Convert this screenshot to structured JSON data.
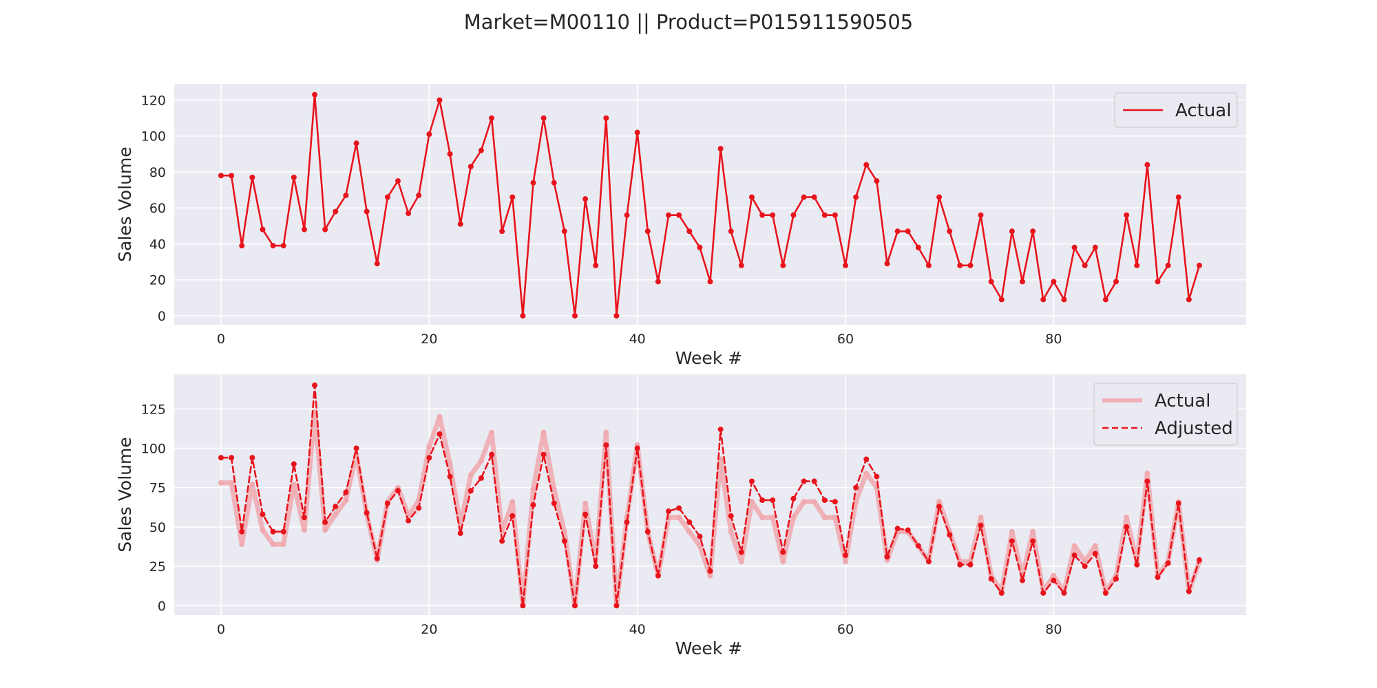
{
  "figure": {
    "title": "Market=M00110 || Product=P015911590505"
  },
  "colors": {
    "background": "#ffffff",
    "plot_background": "#eaeaf2",
    "grid": "#ffffff",
    "actual_line": "#e8141c",
    "actual_faint": "#f0a8ae",
    "adjusted_line": "#e8141c",
    "text": "#262626"
  },
  "chart_data": [
    {
      "type": "line",
      "xlabel": "Week #",
      "ylabel": "Sales Volume",
      "xlim": [
        -4.5,
        98.5
      ],
      "ylim": [
        -5,
        129
      ],
      "xticks": [
        0,
        20,
        40,
        60,
        80
      ],
      "yticks": [
        0,
        20,
        40,
        60,
        80,
        100,
        120
      ],
      "grid": true,
      "legend_position": "top-right",
      "legend": [
        "Actual"
      ],
      "series": [
        {
          "name": "Actual",
          "style": "solid",
          "markers": true,
          "x": [
            0,
            1,
            2,
            3,
            4,
            5,
            6,
            7,
            8,
            9,
            10,
            11,
            12,
            13,
            14,
            15,
            16,
            17,
            18,
            19,
            20,
            21,
            22,
            23,
            24,
            25,
            26,
            27,
            28,
            29,
            30,
            31,
            32,
            33,
            34,
            35,
            36,
            37,
            38,
            39,
            40,
            41,
            42,
            43,
            44,
            45,
            46,
            47,
            48,
            49,
            50,
            51,
            52,
            53,
            54,
            55,
            56,
            57,
            58,
            59,
            60,
            61,
            62,
            63,
            64,
            65,
            66,
            67,
            68,
            69,
            70,
            71,
            72,
            73,
            74,
            75,
            76,
            77,
            78,
            79,
            80,
            81,
            82,
            83,
            84,
            85,
            86,
            87,
            88,
            89,
            90,
            91,
            92,
            93,
            94
          ],
          "values": [
            78,
            78,
            39,
            77,
            48,
            39,
            39,
            77,
            48,
            123,
            48,
            58,
            67,
            96,
            58,
            29,
            66,
            75,
            57,
            67,
            101,
            120,
            90,
            51,
            83,
            92,
            110,
            47,
            66,
            0,
            74,
            110,
            74,
            47,
            0,
            65,
            28,
            110,
            0,
            56,
            102,
            47,
            19,
            56,
            56,
            47,
            38,
            19,
            93,
            47,
            28,
            66,
            56,
            56,
            28,
            56,
            66,
            66,
            56,
            56,
            28,
            66,
            84,
            75,
            29,
            47,
            47,
            38,
            28,
            66,
            47,
            28,
            28,
            56,
            19,
            9,
            47,
            19,
            47,
            9,
            19,
            9,
            38,
            28,
            38,
            9,
            19,
            56,
            28,
            84,
            19,
            28,
            66,
            9,
            28
          ]
        }
      ]
    },
    {
      "type": "line",
      "xlabel": "Week #",
      "ylabel": "Sales Volume",
      "xlim": [
        -4.5,
        98.5
      ],
      "ylim": [
        -6,
        147
      ],
      "xticks": [
        0,
        20,
        40,
        60,
        80
      ],
      "yticks": [
        0,
        25,
        50,
        75,
        100,
        125
      ],
      "grid": true,
      "legend_position": "top-right",
      "legend": [
        "Actual",
        "Adjusted"
      ],
      "series": [
        {
          "name": "Actual",
          "style": "faint-thick",
          "markers": true,
          "x": [
            0,
            1,
            2,
            3,
            4,
            5,
            6,
            7,
            8,
            9,
            10,
            11,
            12,
            13,
            14,
            15,
            16,
            17,
            18,
            19,
            20,
            21,
            22,
            23,
            24,
            25,
            26,
            27,
            28,
            29,
            30,
            31,
            32,
            33,
            34,
            35,
            36,
            37,
            38,
            39,
            40,
            41,
            42,
            43,
            44,
            45,
            46,
            47,
            48,
            49,
            50,
            51,
            52,
            53,
            54,
            55,
            56,
            57,
            58,
            59,
            60,
            61,
            62,
            63,
            64,
            65,
            66,
            67,
            68,
            69,
            70,
            71,
            72,
            73,
            74,
            75,
            76,
            77,
            78,
            79,
            80,
            81,
            82,
            83,
            84,
            85,
            86,
            87,
            88,
            89,
            90,
            91,
            92,
            93,
            94
          ],
          "values": [
            78,
            78,
            39,
            77,
            48,
            39,
            39,
            77,
            48,
            123,
            48,
            58,
            67,
            96,
            58,
            29,
            66,
            75,
            57,
            67,
            101,
            120,
            90,
            51,
            83,
            92,
            110,
            47,
            66,
            0,
            74,
            110,
            74,
            47,
            0,
            65,
            28,
            110,
            0,
            56,
            102,
            47,
            19,
            56,
            56,
            47,
            38,
            19,
            93,
            47,
            28,
            66,
            56,
            56,
            28,
            56,
            66,
            66,
            56,
            56,
            28,
            66,
            84,
            75,
            29,
            47,
            47,
            38,
            28,
            66,
            47,
            28,
            28,
            56,
            19,
            9,
            47,
            19,
            47,
            9,
            19,
            9,
            38,
            28,
            38,
            9,
            19,
            56,
            28,
            84,
            19,
            28,
            66,
            9,
            28
          ]
        },
        {
          "name": "Adjusted",
          "style": "dashed",
          "markers": true,
          "x": [
            0,
            1,
            2,
            3,
            4,
            5,
            6,
            7,
            8,
            9,
            10,
            11,
            12,
            13,
            14,
            15,
            16,
            17,
            18,
            19,
            20,
            21,
            22,
            23,
            24,
            25,
            26,
            27,
            28,
            29,
            30,
            31,
            32,
            33,
            34,
            35,
            36,
            37,
            38,
            39,
            40,
            41,
            42,
            43,
            44,
            45,
            46,
            47,
            48,
            49,
            50,
            51,
            52,
            53,
            54,
            55,
            56,
            57,
            58,
            59,
            60,
            61,
            62,
            63,
            64,
            65,
            66,
            67,
            68,
            69,
            70,
            71,
            72,
            73,
            74,
            75,
            76,
            77,
            78,
            79,
            80,
            81,
            82,
            83,
            84,
            85,
            86,
            87,
            88,
            89,
            90,
            91,
            92,
            93,
            94
          ],
          "values": [
            94,
            94,
            47,
            94,
            58,
            47,
            47,
            90,
            56,
            140,
            53,
            63,
            72,
            100,
            59,
            30,
            65,
            73,
            54,
            62,
            94,
            109,
            82,
            46,
            73,
            81,
            96,
            41,
            57,
            0,
            64,
            96,
            65,
            41,
            0,
            58,
            25,
            102,
            0,
            53,
            100,
            47,
            19,
            60,
            62,
            53,
            44,
            22,
            112,
            57,
            34,
            79,
            67,
            67,
            34,
            68,
            79,
            79,
            67,
            66,
            32,
            75,
            93,
            82,
            31,
            49,
            48,
            38,
            28,
            63,
            45,
            26,
            26,
            51,
            17,
            8,
            41,
            16,
            41,
            8,
            16,
            8,
            32,
            25,
            33,
            8,
            17,
            50,
            26,
            79,
            18,
            27,
            65,
            9,
            29
          ]
        }
      ]
    }
  ]
}
